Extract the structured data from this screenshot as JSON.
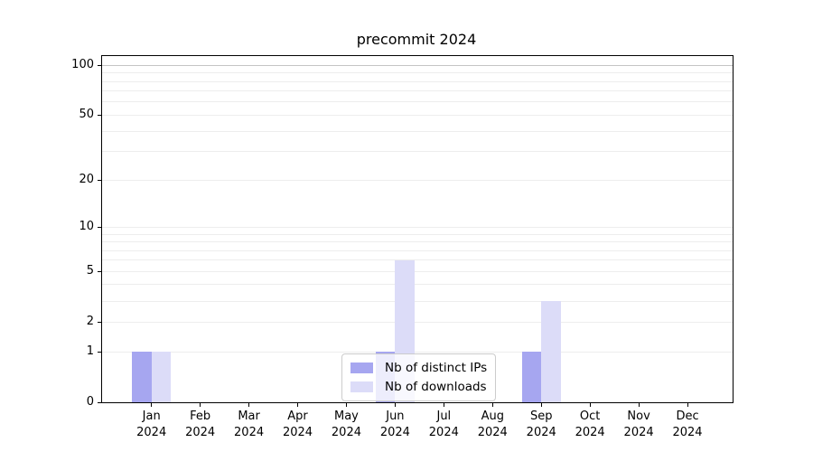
{
  "chart_data": {
    "type": "bar",
    "title": "precommit 2024",
    "categories": [
      "Jan",
      "Feb",
      "Mar",
      "Apr",
      "May",
      "Jun",
      "Jul",
      "Aug",
      "Sep",
      "Oct",
      "Nov",
      "Dec"
    ],
    "year_label": "2024",
    "series": [
      {
        "name": "Nb of distinct IPs",
        "color": "#a6a6f0",
        "values": [
          1,
          0,
          0,
          0,
          0,
          1,
          0,
          0,
          1,
          0,
          0,
          0
        ]
      },
      {
        "name": "Nb of downloads",
        "color": "#dcdcf8",
        "values": [
          1,
          0,
          0,
          0,
          0,
          6,
          0,
          0,
          3,
          0,
          0,
          0
        ]
      }
    ],
    "xlabel": "",
    "ylabel": "",
    "yscale": "log1p",
    "yticks": [
      0,
      1,
      2,
      5,
      10,
      20,
      50,
      100
    ],
    "minor_grid_values": [
      3,
      4,
      6,
      7,
      8,
      9,
      30,
      40,
      60,
      70,
      80,
      90
    ],
    "ylim": [
      0,
      113
    ],
    "grid": true,
    "legend_position": "lower center"
  },
  "colors": {
    "grid_minor": "#ededed",
    "grid_top": "#c4c4c4",
    "axis": "#000000"
  }
}
